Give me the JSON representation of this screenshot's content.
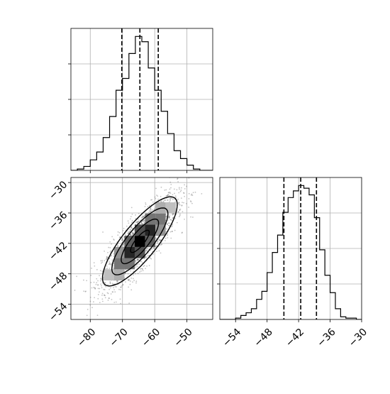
{
  "chart_data": [
    {
      "panel": "hist-x",
      "type": "bar",
      "xlim": [
        -86,
        -42
      ],
      "grid": true,
      "bin_edges": [
        -86,
        -84,
        -82,
        -80,
        -78,
        -76,
        -74,
        -72,
        -70,
        -68,
        -66,
        -64,
        -62,
        -60,
        -58,
        -56,
        -54,
        -52,
        -50,
        -48,
        -46,
        -44,
        -42
      ],
      "counts": [
        0,
        1,
        3,
        8,
        14,
        25,
        41,
        61,
        70,
        89,
        102,
        98,
        78,
        61,
        45,
        28,
        15,
        9,
        4,
        1,
        0,
        0
      ],
      "quantiles": [
        -70.2,
        -64.6,
        -58.9
      ],
      "x_ticks": [
        -80,
        -70,
        -60,
        -50
      ],
      "x_tick_labels": [
        "−80",
        "−70",
        "−60",
        "−50"
      ]
    },
    {
      "panel": "hist-y",
      "type": "bar",
      "xlim": [
        -57,
        -30
      ],
      "grid": true,
      "bin_edges": [
        -57,
        -56,
        -55,
        -54,
        -53,
        -52,
        -51,
        -50,
        -49,
        -48,
        -47,
        -46,
        -45,
        -44,
        -43,
        -42,
        -41,
        -40,
        -39,
        -38,
        -37,
        -36,
        -35,
        -34,
        -33,
        -32,
        -31,
        -30
      ],
      "counts": [
        0,
        0,
        0,
        1,
        3,
        5,
        8,
        15,
        21,
        35,
        50,
        63,
        80,
        91,
        96,
        100,
        98,
        93,
        76,
        52,
        33,
        20,
        8,
        2,
        1,
        1,
        0
      ],
      "quantiles": [
        -44.8,
        -41.6,
        -38.6
      ],
      "x_ticks": [
        -54,
        -48,
        -42,
        -36,
        -30
      ],
      "x_tick_labels": [
        "−54",
        "−48",
        "−42",
        "−36",
        "−30"
      ]
    },
    {
      "panel": "joint",
      "type": "scatter",
      "xlim": [
        -86,
        -42
      ],
      "ylim": [
        -57,
        -29
      ],
      "grid": true,
      "center": [
        -64.6,
        -41.6
      ],
      "std": [
        5.8,
        4.4
      ],
      "correlation": 0.82,
      "y_ticks": [
        -30,
        -36,
        -42,
        -48,
        -54
      ],
      "y_tick_labels": [
        "−30",
        "−36",
        "−42",
        "−48",
        "−54"
      ],
      "x_ticks": [
        -80,
        -70,
        -60,
        -50
      ],
      "x_tick_labels": [
        "−80",
        "−70",
        "−60",
        "−50"
      ],
      "contour_levels_sigma": [
        0.5,
        1.0,
        1.5,
        2.0
      ]
    }
  ]
}
